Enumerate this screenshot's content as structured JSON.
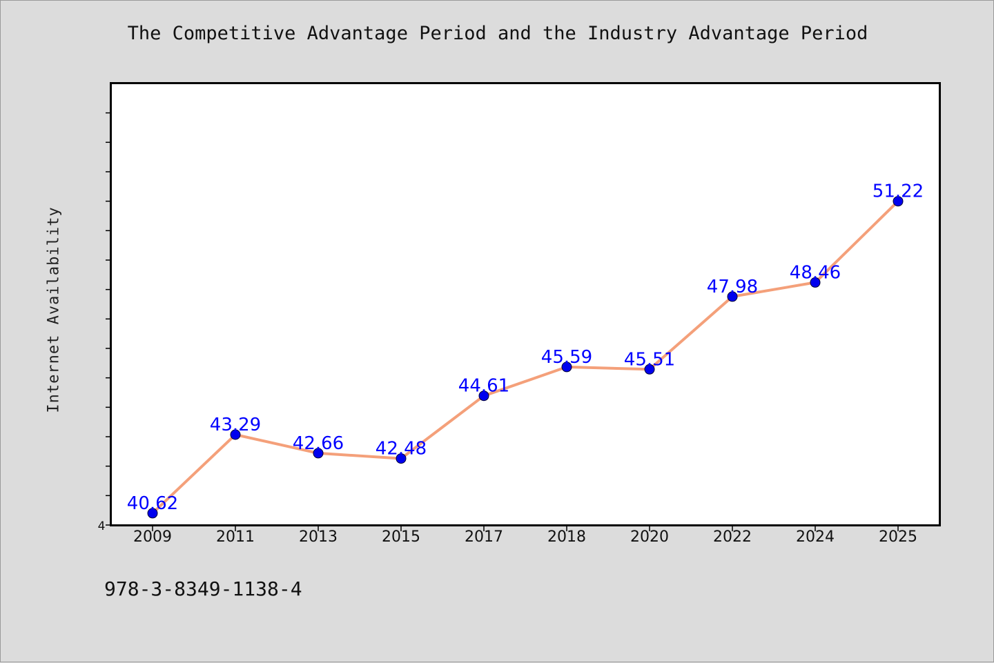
{
  "chart_data": {
    "type": "line",
    "title": "The Competitive Advantage Period and the Industry Advantage Period",
    "xlabel": "",
    "ylabel": "Internet Availability",
    "categories": [
      "2009",
      "2011",
      "2013",
      "2015",
      "2017",
      "2018",
      "2020",
      "2022",
      "2024",
      "2025"
    ],
    "series": [
      {
        "values": [
          40.62,
          43.29,
          42.66,
          42.48,
          44.61,
          45.59,
          45.51,
          47.98,
          48.46,
          51.22
        ],
        "labels": [
          "40.62",
          "43.29",
          "42.66",
          "42.48",
          "44.61",
          "45.59",
          "45.51",
          "47.98",
          "48.46",
          "51.22"
        ],
        "line_color": "#f4a07a",
        "marker_color": "#0000ee"
      }
    ],
    "y_tick_labels": [
      "4"
    ],
    "ylim": [
      40.22,
      55.22
    ],
    "grid": false,
    "label_color": "#0000ff",
    "plot_background": "#ffffff",
    "figure_background": "#dcdcdc"
  },
  "footer": {
    "code": "978-3-8349-1138-4"
  }
}
